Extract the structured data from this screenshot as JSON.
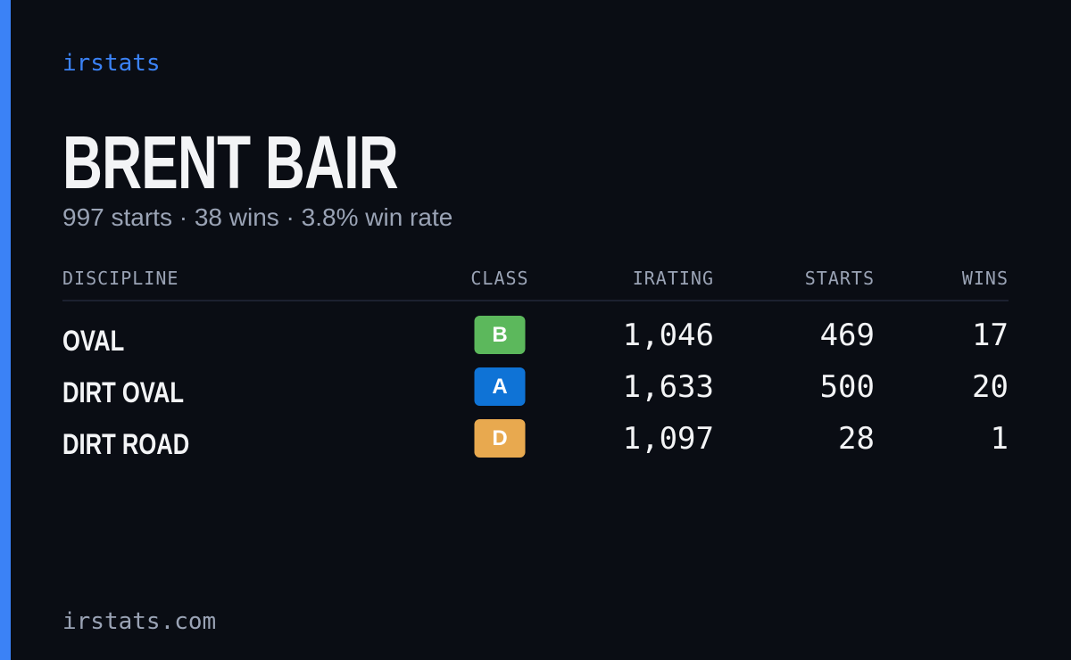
{
  "brand": "irstats",
  "driver": {
    "name": "BRENT BAIR",
    "summary": "997 starts · 38 wins · 3.8% win rate"
  },
  "table": {
    "headers": [
      "DISCIPLINE",
      "CLASS",
      "IRATING",
      "STARTS",
      "WINS"
    ],
    "rows": [
      {
        "discipline": "OVAL",
        "class": "B",
        "class_color": "#5cb85c",
        "irating": "1,046",
        "starts": "469",
        "wins": "17"
      },
      {
        "discipline": "DIRT OVAL",
        "class": "A",
        "class_color": "#0f73d6",
        "irating": "1,633",
        "starts": "500",
        "wins": "20"
      },
      {
        "discipline": "DIRT ROAD",
        "class": "D",
        "class_color": "#e8a94f",
        "irating": "1,097",
        "starts": "28",
        "wins": "1"
      }
    ]
  },
  "footer": "irstats.com"
}
